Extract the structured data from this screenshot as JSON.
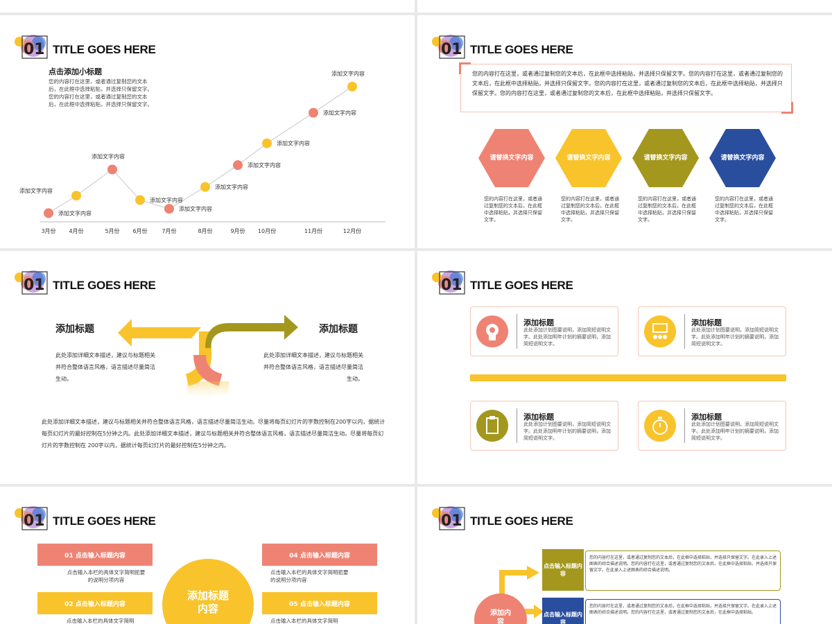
{
  "colors": {
    "salmon": "#ee8373",
    "yellow": "#f9c32b",
    "olive": "#a4971e",
    "blue": "#2a4e9e",
    "gray": "#999999"
  },
  "slide_title": "TITLE GOES HERE",
  "slide_number": "01",
  "slide1": {
    "subtitle": "点击添加小标题",
    "body": [
      "您的内容打在这里，或者通过复制您的文本",
      "后，在此框中选择粘贴，并选择只保留文字。",
      "您的内容打在这里，或者通过复制您的文本",
      "后，在此框中选择粘贴，并选择只保留文字。"
    ],
    "chart_data": {
      "type": "line",
      "categories": [
        "3月份",
        "4月份",
        "5月份",
        "6月份",
        "7月份",
        "8月份",
        "9月份",
        "10月份",
        "11月份",
        "12月份"
      ],
      "point_labels": [
        "添加文字内容",
        "添加文字内容",
        "添加文字内容",
        "添加文字内容",
        "添加文字内容",
        "添加文字内容",
        "添加文字内容",
        "添加文字内容",
        "添加文字内容",
        "添加文字内容"
      ],
      "point_colors": [
        "salmon",
        "yellow",
        "salmon",
        "yellow",
        "salmon",
        "yellow",
        "salmon",
        "yellow",
        "salmon",
        "yellow"
      ],
      "values": [
        1,
        3,
        6,
        2.5,
        1.5,
        4,
        6.5,
        9,
        12.5,
        15.5
      ],
      "ylim": [
        0,
        17
      ],
      "grid": false
    }
  },
  "slide2": {
    "text": "您的内容打在这里，或者通过复制您的文本后，在此框中选择粘贴，并选择只保留文字。您的内容打在这里，或者通过复制您的文本后，在此框中选择粘贴，并选择只保留文字。您的内容打在这里，或者通过复制您的文本后，在此框中选择粘贴，并选择只保留文字。您的内容打在这里，或者通过复制您的文本后，在此框中选择粘贴，并选择只保留文字。",
    "hexes": [
      {
        "label": "请替换文字内容",
        "color": "#ee8373",
        "desc": "您的内容打在这里，或者通过复制您的文本后，在此框中选择粘贴，并选择只保留文字。"
      },
      {
        "label": "请替换文字内容",
        "color": "#f9c32b",
        "desc": "您的内容打在这里，或者通过复制您的文本后，在此框中选择粘贴，并选择只保留文字。"
      },
      {
        "label": "请替换文字内容",
        "color": "#a4971e",
        "desc": "您的内容打在这里，或者通过复制您的文本后，在此框中选择粘贴，并选择只保留文字。"
      },
      {
        "label": "请替换文字内容",
        "color": "#2a4e9e",
        "desc": "您的内容打在这里，或者通过复制您的文本后，在此框中选择粘贴，并选择只保留文字。"
      }
    ]
  },
  "slide3": {
    "left_title": "添加标题",
    "left_body": "此处添加详细文本描述，建议与标题相关并符合整体语言风格，语言描述尽量简洁生动。",
    "right_title": "添加标题",
    "right_body": "此处添加详细文本描述，建议与标题相关并符合整体语言风格，语言描述尽量简洁生动。",
    "bottom": "此处添加详细文本描述，建议与标题相关并符合整体语言风格，语言描述尽量简洁生动。尽量将每页幻灯片的字数控制在200字以内，据统计每页幻灯片的最好控制在5分钟之内。此处添加详细文本描述，建议与标题相关并符合整体语言风格，语言描述尽量简洁生动。尽量将每页幻灯片的字数控制在 200字以内，据统计每页幻灯片的最好控制在5分钟之内。"
  },
  "slide4": {
    "cards": [
      {
        "title": "添加标题",
        "body": "此处添加计划图要说明，添加简短说明文字。此处添加明年计划的摘要说明，添加简短说明文字。",
        "icon": "head-gear-icon",
        "color": "#ee8373"
      },
      {
        "title": "添加标题",
        "body": "此处添加计划图要说明，添加简短说明文字。此处添加明年计划的摘要说明，添加简短说明文字。",
        "icon": "presentation-icon",
        "color": "#f9c32b"
      },
      {
        "title": "添加标题",
        "body": "此处添加计划图要说明，添加简短说明文字。此处添加明年计划的摘要说明，添加简短说明文字。",
        "icon": "clipboard-icon",
        "color": "#a4971e"
      },
      {
        "title": "添加标题",
        "body": "此处添加计划图要说明，添加简短说明文字。此处添加明年计划的摘要说明，添加简短说明文字。",
        "icon": "stopwatch-icon",
        "color": "#f9c32b"
      }
    ]
  },
  "slide5": {
    "center": "添加标题内容",
    "bars": [
      {
        "label": "01 点击输入标题内容",
        "desc": "点击输入本栏的具体文字简明扼要的说明分项内容",
        "color": "#ee8373"
      },
      {
        "label": "04 点击输入标题内容",
        "desc": "点击输入本栏的具体文字简明扼要的说明分项内容",
        "color": "#ee8373"
      },
      {
        "label": "02 点击输入标题内容",
        "desc": "点击输入本栏的具体文字简明",
        "color": "#f9c32b"
      },
      {
        "label": "05 点击输入标题内容",
        "desc": "点击输入本栏的具体文字简明",
        "color": "#f9c32b"
      }
    ]
  },
  "slide6": {
    "circle_label": "添加内容",
    "boxes": [
      {
        "label": "点击输入标题内容",
        "text": "您的内容打在这里，或者通过复制您的文本后，在此框中选择粘贴，并选择只保留文字。在此录入上述图表的综合描述说明。您的内容打在这里，或者通过复制您的文本后，在此框中选择粘贴，并选择只保留文字。在此录入上述图表的综合描述说明。",
        "color": "#a4971e"
      },
      {
        "label": "点击输入标题内容",
        "text": "您的内容打在这里，或者通过复制您的文本后，在此框中选择粘贴，并选择只保留文字。在此录入上述图表的综合描述说明。您的内容打在这里，或者通过复制您的文本后，在此框中选择粘贴。",
        "color": "#2a4e9e"
      }
    ]
  }
}
